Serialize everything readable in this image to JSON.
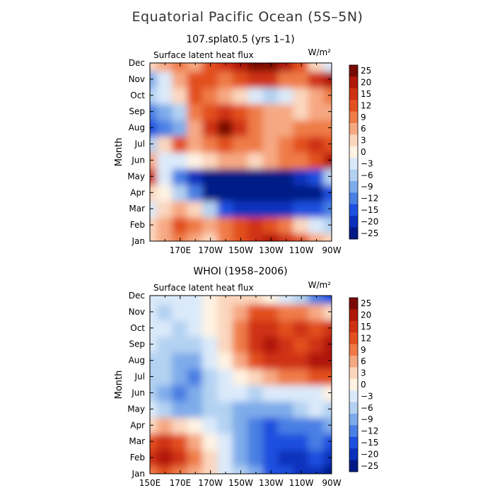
{
  "chart_data": {
    "type": "heatmap",
    "title": "Equatorial Pacific Ocean (5S–5N)",
    "colorbar": {
      "levels": [
        "25",
        "20",
        "15",
        "12",
        "9",
        "6",
        "3",
        "0",
        "−3",
        "−6",
        "−9",
        "−12",
        "−15",
        "−20",
        "−25"
      ],
      "colors": [
        "#7a0a05",
        "#b0180c",
        "#cf3212",
        "#e2501f",
        "#ef7b46",
        "#f6a882",
        "#fbd6bd",
        "#fff3e3",
        "#dbeafa",
        "#b3d2f2",
        "#7eabea",
        "#4a7fe3",
        "#1d50df",
        "#0a30bc",
        "#031a86"
      ]
    },
    "panels": [
      {
        "subtitle": "107.splat0.5 (yrs 1–1)",
        "label": "Surface latent heat flux",
        "units": "W/m²",
        "ylabel": "Month",
        "months": [
          "Jan",
          "Feb",
          "Mar",
          "Apr",
          "May",
          "Jun",
          "Jul",
          "Aug",
          "Sep",
          "Oct",
          "Nov",
          "Dec"
        ],
        "lon_ticks": [
          "170E",
          "170W",
          "150W",
          "130W",
          "110W",
          "90W"
        ],
        "lon_values": [
          150,
          160,
          170,
          180,
          190,
          200,
          210,
          220,
          230,
          240,
          250,
          260,
          270
        ],
        "values": [
          [
            3,
            6,
            9,
            6,
            3,
            9,
            12,
            18,
            20,
            18,
            12,
            6,
            3
          ],
          [
            3,
            6,
            12,
            9,
            6,
            9,
            12,
            15,
            12,
            9,
            3,
            -3,
            -6
          ],
          [
            -3,
            3,
            6,
            3,
            -6,
            -15,
            -20,
            -20,
            -20,
            -20,
            -15,
            -15,
            -12
          ],
          [
            3,
            0,
            -6,
            -12,
            -22,
            -25,
            -25,
            -25,
            -25,
            -25,
            -25,
            -22,
            -15
          ],
          [
            15,
            -3,
            -12,
            -18,
            -22,
            -25,
            -25,
            -25,
            -25,
            -22,
            -20,
            -15,
            -6
          ],
          [
            6,
            -3,
            -3,
            0,
            3,
            6,
            6,
            3,
            6,
            9,
            9,
            12,
            20
          ],
          [
            -6,
            3,
            12,
            6,
            9,
            12,
            9,
            9,
            6,
            9,
            12,
            15,
            12
          ],
          [
            -15,
            -12,
            -9,
            6,
            15,
            25,
            15,
            9,
            6,
            6,
            9,
            9,
            9
          ],
          [
            -12,
            -9,
            -6,
            9,
            12,
            15,
            12,
            9,
            6,
            6,
            3,
            6,
            6
          ],
          [
            -6,
            -3,
            3,
            12,
            9,
            6,
            3,
            -3,
            -6,
            -3,
            3,
            6,
            9
          ],
          [
            -9,
            -3,
            6,
            12,
            12,
            9,
            12,
            15,
            15,
            9,
            9,
            15,
            20
          ],
          [
            3,
            6,
            9,
            6,
            12,
            15,
            20,
            25,
            25,
            20,
            12,
            3,
            -3
          ]
        ]
      },
      {
        "subtitle": "WHOI (1958–2006)",
        "label": "Surface latent heat flux",
        "units": "W/m²",
        "ylabel": "Month",
        "months": [
          "Jan",
          "Feb",
          "Mar",
          "Apr",
          "May",
          "Jun",
          "Jul",
          "Aug",
          "Sep",
          "Oct",
          "Nov",
          "Dec"
        ],
        "lon_ticks": [
          "150E",
          "170E",
          "170W",
          "150W",
          "130W",
          "110W",
          "90W"
        ],
        "lon_values": [
          150,
          160,
          170,
          180,
          190,
          200,
          210,
          220,
          230,
          240,
          250,
          260,
          270
        ],
        "values": [
          [
            9,
            12,
            9,
            6,
            3,
            -3,
            -6,
            -9,
            -15,
            -15,
            -20,
            -20,
            -25
          ],
          [
            15,
            20,
            15,
            9,
            3,
            -3,
            -9,
            -12,
            -15,
            -20,
            -20,
            -15,
            -20
          ],
          [
            12,
            15,
            12,
            6,
            0,
            -3,
            -9,
            -12,
            -15,
            -15,
            -15,
            -12,
            -15
          ],
          [
            3,
            6,
            3,
            0,
            -3,
            -6,
            -9,
            -12,
            -15,
            -12,
            -12,
            -12,
            -9
          ],
          [
            -3,
            -6,
            -9,
            -9,
            -6,
            -6,
            -9,
            -9,
            -9,
            -9,
            -6,
            -3,
            -6
          ],
          [
            -6,
            -9,
            -12,
            -9,
            -6,
            -3,
            -3,
            -6,
            -3,
            -3,
            -3,
            -3,
            0
          ],
          [
            -6,
            -6,
            -9,
            -12,
            -6,
            -3,
            0,
            3,
            6,
            9,
            9,
            12,
            12
          ],
          [
            -6,
            -6,
            -9,
            -9,
            -3,
            0,
            6,
            12,
            15,
            15,
            15,
            20,
            20
          ],
          [
            -3,
            -6,
            -6,
            -6,
            -3,
            3,
            9,
            15,
            20,
            15,
            12,
            15,
            20
          ],
          [
            -3,
            -3,
            -6,
            -3,
            0,
            3,
            9,
            15,
            15,
            12,
            15,
            12,
            15
          ],
          [
            -3,
            -6,
            -3,
            -3,
            0,
            3,
            6,
            12,
            12,
            9,
            9,
            6,
            3
          ],
          [
            -3,
            -3,
            -3,
            -3,
            0,
            3,
            3,
            3,
            0,
            -3,
            -6,
            -12,
            -15
          ]
        ]
      }
    ]
  }
}
